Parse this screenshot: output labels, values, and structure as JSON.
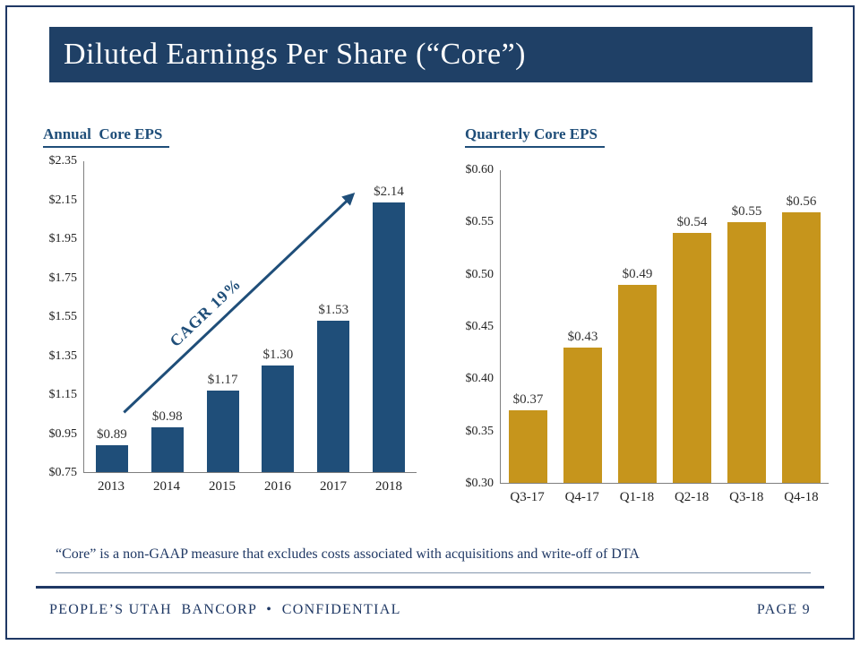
{
  "slide": {
    "title": "Diluted Earnings Per Share (“Core”)",
    "footnote": "“Core” is a non-GAAP measure that excludes costs associated with acquisitions and write-off of DTA",
    "footer_left": "PEOPLE’S UTAH  BANCORP  •  CONFIDENTIAL",
    "footer_right": "PAGE 9"
  },
  "colors": {
    "navy": "#1F4E79",
    "banner_navy": "#1F4066",
    "gold": "#C6951C",
    "frame_border": "#1F3864"
  },
  "chart_data": [
    {
      "type": "bar",
      "title": "Annual  Core EPS",
      "categories": [
        "2013",
        "2014",
        "2015",
        "2016",
        "2017",
        "2018"
      ],
      "values": [
        0.89,
        0.98,
        1.17,
        1.3,
        1.53,
        2.14
      ],
      "labels": [
        "$0.89",
        "$0.98",
        "$1.17",
        "$1.30",
        "$1.53",
        "$2.14"
      ],
      "ylim": [
        0.75,
        2.35
      ],
      "yticks": [
        "$0.75",
        "$0.95",
        "$1.15",
        "$1.35",
        "$1.55",
        "$1.75",
        "$1.95",
        "$2.15",
        "$2.35"
      ],
      "bar_color": "#1F4E79",
      "annotation": "CAGR 19%",
      "grid": false,
      "legend": false
    },
    {
      "type": "bar",
      "title": "Quarterly Core EPS",
      "categories": [
        "Q3-17",
        "Q4-17",
        "Q1-18",
        "Q2-18",
        "Q3-18",
        "Q4-18"
      ],
      "values": [
        0.37,
        0.43,
        0.49,
        0.54,
        0.55,
        0.56
      ],
      "labels": [
        "$0.37",
        "$0.43",
        "$0.49",
        "$0.54",
        "$0.55",
        "$0.56"
      ],
      "ylim": [
        0.3,
        0.6
      ],
      "yticks": [
        "$0.30",
        "$0.35",
        "$0.40",
        "$0.45",
        "$0.50",
        "$0.55",
        "$0.60"
      ],
      "bar_color": "#C6951C",
      "grid": false,
      "legend": false
    }
  ]
}
